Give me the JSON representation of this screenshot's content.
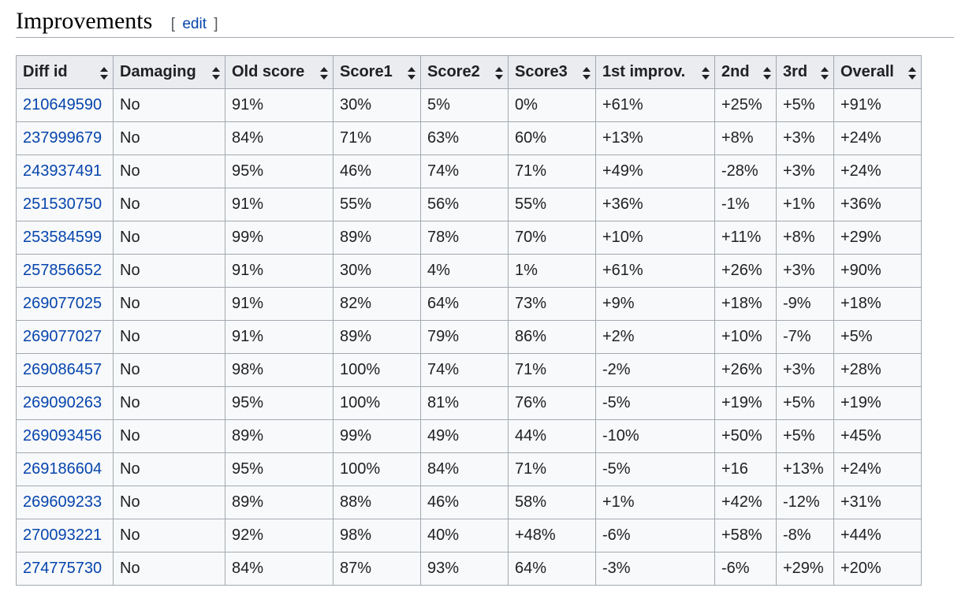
{
  "section": {
    "title": "Improvements",
    "edit_open": "[",
    "edit_label": "edit",
    "edit_close": "]"
  },
  "table": {
    "headers": [
      "Diff id",
      "Damaging",
      "Old score",
      "Score1",
      "Score2",
      "Score3",
      "1st improv.",
      "2nd",
      "3rd",
      "Overall"
    ],
    "rows": [
      [
        "210649590",
        "No",
        "91%",
        "30%",
        "5%",
        "0%",
        "+61%",
        "+25%",
        "+5%",
        "+91%"
      ],
      [
        "237999679",
        "No",
        "84%",
        "71%",
        "63%",
        "60%",
        "+13%",
        "+8%",
        "+3%",
        "+24%"
      ],
      [
        "243937491",
        "No",
        "95%",
        "46%",
        "74%",
        "71%",
        "+49%",
        "-28%",
        "+3%",
        "+24%"
      ],
      [
        "251530750",
        "No",
        "91%",
        "55%",
        "56%",
        "55%",
        "+36%",
        "-1%",
        "+1%",
        "+36%"
      ],
      [
        "253584599",
        "No",
        "99%",
        "89%",
        "78%",
        "70%",
        "+10%",
        "+11%",
        "+8%",
        "+29%"
      ],
      [
        "257856652",
        "No",
        "91%",
        "30%",
        "4%",
        "1%",
        "+61%",
        "+26%",
        "+3%",
        "+90%"
      ],
      [
        "269077025",
        "No",
        "91%",
        "82%",
        "64%",
        "73%",
        "+9%",
        "+18%",
        "-9%",
        "+18%"
      ],
      [
        "269077027",
        "No",
        "91%",
        "89%",
        "79%",
        "86%",
        "+2%",
        "+10%",
        "-7%",
        "+5%"
      ],
      [
        "269086457",
        "No",
        "98%",
        "100%",
        "74%",
        "71%",
        "-2%",
        "+26%",
        "+3%",
        "+28%"
      ],
      [
        "269090263",
        "No",
        "95%",
        "100%",
        "81%",
        "76%",
        "-5%",
        "+19%",
        "+5%",
        "+19%"
      ],
      [
        "269093456",
        "No",
        "89%",
        "99%",
        "49%",
        "44%",
        "-10%",
        "+50%",
        "+5%",
        "+45%"
      ],
      [
        "269186604",
        "No",
        "95%",
        "100%",
        "84%",
        "71%",
        "-5%",
        "+16",
        "+13%",
        "+24%"
      ],
      [
        "269609233",
        "No",
        "89%",
        "88%",
        "46%",
        "58%",
        "+1%",
        "+42%",
        "-12%",
        "+31%"
      ],
      [
        "270093221",
        "No",
        "92%",
        "98%",
        "40%",
        "+48%",
        "-6%",
        "+58%",
        "-8%",
        "+44%"
      ],
      [
        "274775730",
        "No",
        "84%",
        "87%",
        "93%",
        "64%",
        "-3%",
        "-6%",
        "+29%",
        "+20%"
      ]
    ]
  },
  "colors": {
    "link": "#0645ad",
    "header_bg": "#eaecf0",
    "cell_bg": "#f8f9fa",
    "border": "#a2a9b1"
  },
  "icons": {
    "sort": "sort-arrows-icon"
  }
}
